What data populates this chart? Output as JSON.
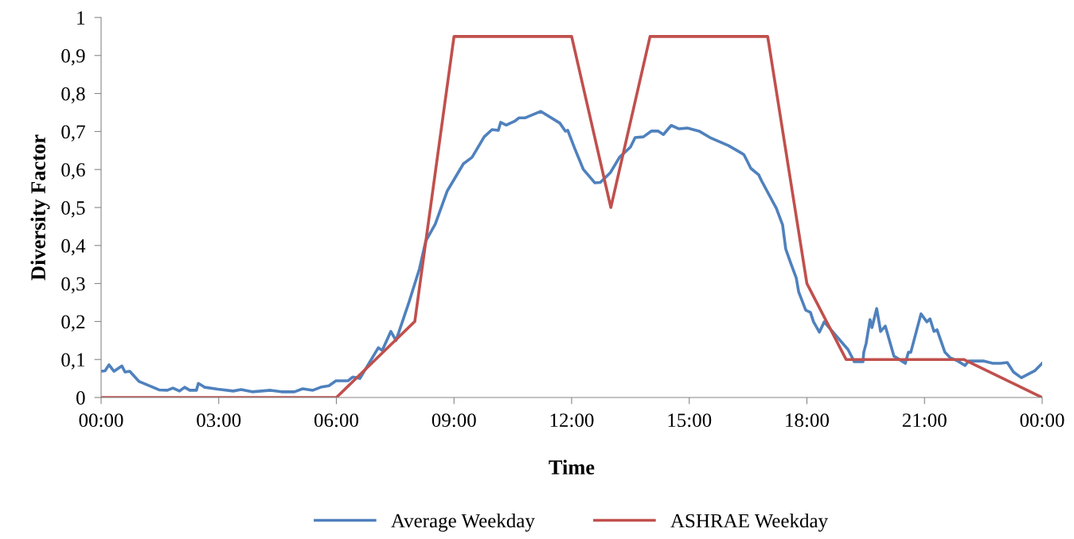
{
  "chart_data": {
    "type": "line",
    "xlabel": "Time",
    "ylabel": "Diversity Factor",
    "xlim": [
      0,
      24
    ],
    "xticks": [
      {
        "value": 0,
        "label": "00:00"
      },
      {
        "value": 3,
        "label": "03:00"
      },
      {
        "value": 6,
        "label": "06:00"
      },
      {
        "value": 9,
        "label": "09:00"
      },
      {
        "value": 12,
        "label": "12:00"
      },
      {
        "value": 15,
        "label": "15:00"
      },
      {
        "value": 18,
        "label": "18:00"
      },
      {
        "value": 21,
        "label": "21:00"
      },
      {
        "value": 24,
        "label": "00:00"
      }
    ],
    "ylim": [
      0,
      1
    ],
    "yticks": [
      0,
      {
        "value": 0.1,
        "label": "0,1"
      },
      {
        "value": 0.2,
        "label": "0,2"
      },
      {
        "value": 0.3,
        "label": "0,3"
      },
      {
        "value": 0.4,
        "label": "0,4"
      },
      {
        "value": 0.5,
        "label": "0,5"
      },
      {
        "value": 0.6,
        "label": "0,6"
      },
      {
        "value": 0.7,
        "label": "0,7"
      },
      {
        "value": 0.8,
        "label": "0,8"
      },
      {
        "value": 0.9,
        "label": "0,9"
      },
      1
    ],
    "grid": false,
    "legend": "bottom",
    "marker": "none",
    "line_style": "solid",
    "series": [
      {
        "name": "Average Weekday",
        "color": "#4f81bd",
        "x": [
          0,
          0.1,
          0.2,
          0.33,
          0.53,
          0.61,
          0.73,
          0.97,
          1.48,
          1.69,
          1.83,
          2.0,
          2.13,
          2.26,
          2.43,
          2.48,
          2.64,
          2.97,
          3.37,
          3.57,
          3.85,
          4.32,
          4.6,
          4.93,
          5.14,
          5.4,
          5.6,
          5.81,
          5.99,
          6.3,
          6.42,
          6.6,
          7.07,
          7.17,
          7.39,
          7.52,
          7.84,
          8.12,
          8.28,
          8.52,
          8.83,
          9.24,
          9.46,
          9.77,
          9.97,
          10.13,
          10.19,
          10.33,
          10.56,
          10.66,
          10.82,
          11.21,
          11.7,
          11.84,
          11.9,
          12.08,
          12.3,
          12.59,
          12.73,
          12.99,
          13.22,
          13.5,
          13.62,
          13.83,
          14.03,
          14.21,
          14.34,
          14.54,
          14.74,
          14.95,
          15.25,
          15.53,
          16.0,
          16.35,
          16.4,
          16.57,
          16.77,
          16.85,
          17.22,
          17.38,
          17.46,
          17.58,
          17.73,
          17.79,
          17.97,
          18.09,
          18.17,
          18.32,
          18.44,
          19.05,
          19.21,
          19.43,
          19.45,
          19.51,
          19.61,
          19.66,
          19.78,
          19.88,
          20.0,
          20.22,
          20.51,
          20.59,
          20.65,
          20.91,
          21.06,
          21.14,
          21.24,
          21.32,
          21.52,
          21.65,
          21.85,
          22.03,
          22.13,
          22.5,
          22.74,
          22.94,
          23.11,
          23.27,
          23.47,
          23.82,
          24.0
        ],
        "values": [
          0.069,
          0.07,
          0.086,
          0.069,
          0.083,
          0.067,
          0.069,
          0.042,
          0.02,
          0.019,
          0.025,
          0.017,
          0.027,
          0.019,
          0.019,
          0.037,
          0.027,
          0.022,
          0.017,
          0.021,
          0.015,
          0.019,
          0.015,
          0.015,
          0.023,
          0.019,
          0.027,
          0.031,
          0.044,
          0.044,
          0.054,
          0.05,
          0.131,
          0.124,
          0.174,
          0.15,
          0.247,
          0.339,
          0.412,
          0.456,
          0.544,
          0.615,
          0.632,
          0.686,
          0.705,
          0.703,
          0.724,
          0.717,
          0.728,
          0.736,
          0.736,
          0.753,
          0.722,
          0.701,
          0.703,
          0.655,
          0.6,
          0.565,
          0.566,
          0.592,
          0.632,
          0.659,
          0.684,
          0.686,
          0.701,
          0.701,
          0.692,
          0.716,
          0.707,
          0.709,
          0.701,
          0.684,
          0.663,
          0.642,
          0.638,
          0.603,
          0.586,
          0.569,
          0.498,
          0.454,
          0.391,
          0.356,
          0.314,
          0.278,
          0.23,
          0.224,
          0.199,
          0.172,
          0.199,
          0.126,
          0.094,
          0.094,
          0.119,
          0.142,
          0.205,
          0.184,
          0.234,
          0.174,
          0.188,
          0.109,
          0.09,
          0.119,
          0.119,
          0.22,
          0.199,
          0.207,
          0.174,
          0.178,
          0.119,
          0.105,
          0.096,
          0.084,
          0.096,
          0.096,
          0.09,
          0.09,
          0.092,
          0.067,
          0.052,
          0.071,
          0.09
        ]
      },
      {
        "name": "ASHRAE Weekday",
        "color": "#c0504d",
        "x": [
          0,
          6,
          8,
          9,
          12,
          13,
          14,
          17,
          18,
          19,
          22,
          24
        ],
        "values": [
          0,
          0,
          0.2,
          0.95,
          0.95,
          0.5,
          0.95,
          0.95,
          0.3,
          0.1,
          0.1,
          0
        ]
      }
    ]
  }
}
